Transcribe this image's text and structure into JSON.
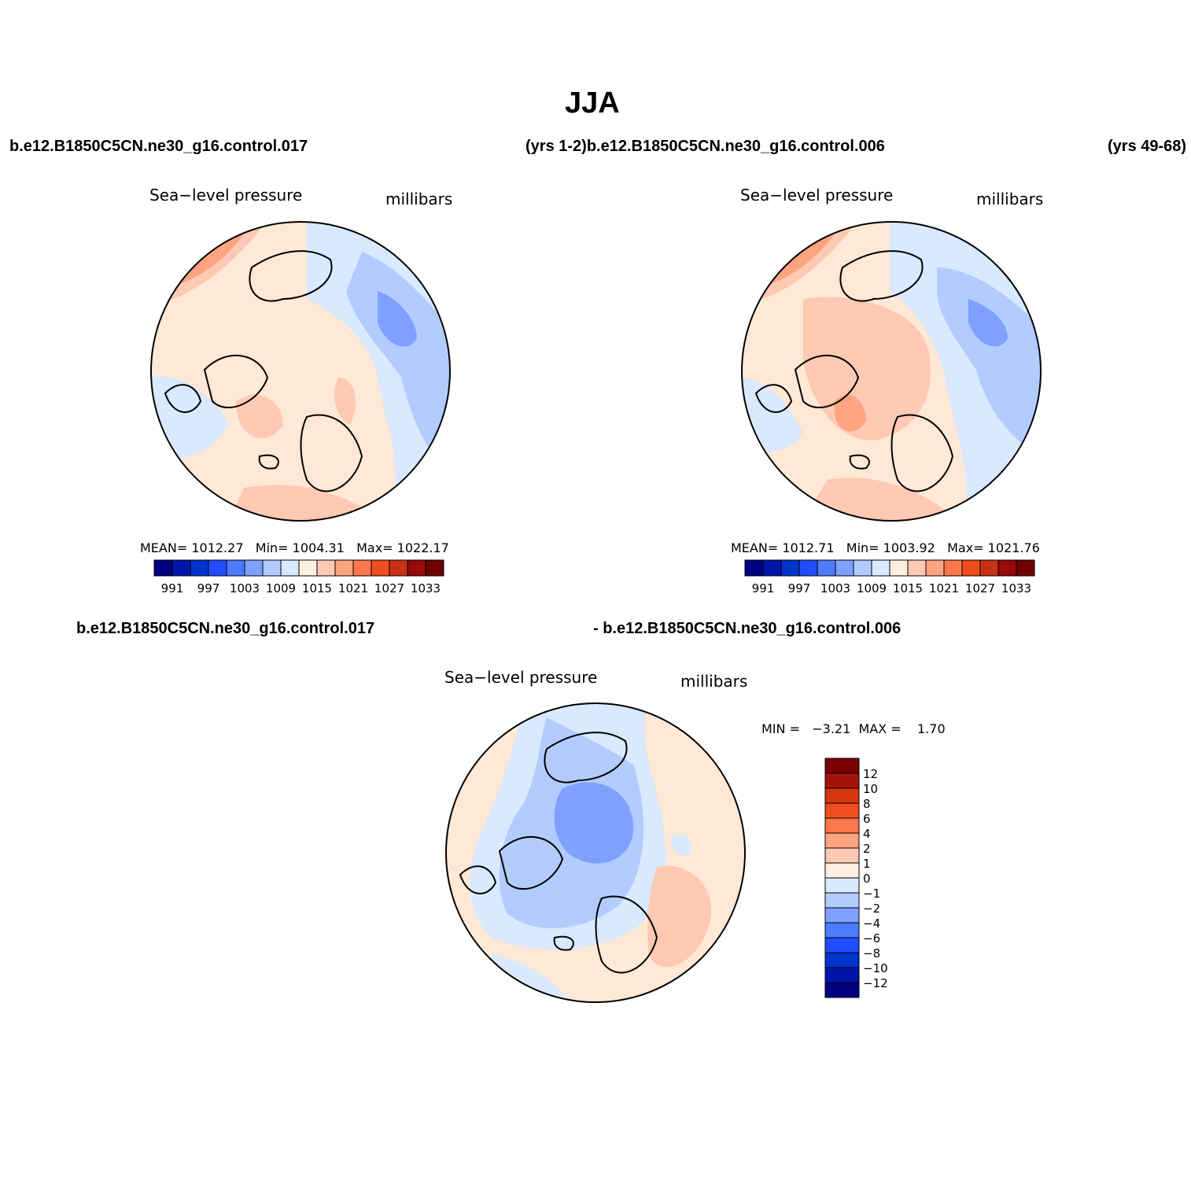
{
  "title": "JJA",
  "header": {
    "left_case": "b.e12.B1850C5CN.ne30_g16.control.017",
    "middle": "(yrs 1-2)b.e12.B1850C5CN.ne30_g16.control.006",
    "right": "(yrs 49-68)"
  },
  "diff_header": {
    "left": "b.e12.B1850C5CN.ne30_g16.control.017",
    "right": "- b.e12.B1850C5CN.ne30_g16.control.006"
  },
  "panels": [
    {
      "variable": "Sea−level pressure",
      "units": "millibars",
      "mean_label": "MEAN=",
      "mean": "1012.27",
      "min_label": "Min=",
      "min": "1004.31",
      "max_label": "Max=",
      "max": "1022.17"
    },
    {
      "variable": "Sea−level pressure",
      "units": "millibars",
      "mean_label": "MEAN=",
      "mean": "1012.71",
      "min_label": "Min=",
      "min": "1003.92",
      "max_label": "Max=",
      "max": "1021.76"
    }
  ],
  "diff_panel": {
    "variable": "Sea−level pressure",
    "units": "millibars",
    "min_label": "MIN =",
    "min": "−3.21",
    "max_label": "MAX =",
    "max": "1.70"
  },
  "colorbar_abs": {
    "colors": [
      "#000080",
      "#0015a8",
      "#0033cc",
      "#1f4dff",
      "#4d7dff",
      "#80a0ff",
      "#b3ccff",
      "#d9e9ff",
      "#ffefe0",
      "#ffc9b3",
      "#ffa380",
      "#ff774d",
      "#f04d1f",
      "#c83214",
      "#960a0a",
      "#6e0000"
    ],
    "labels": [
      "991",
      "997",
      "1003",
      "1009",
      "1015",
      "1021",
      "1027",
      "1033"
    ]
  },
  "colorbar_diff": {
    "colors": [
      "#000080",
      "#0015a8",
      "#0033cc",
      "#1f4dff",
      "#4d7dff",
      "#80a0ff",
      "#b3ccff",
      "#d9e9ff",
      "#ffefe0",
      "#ffc9b3",
      "#ffa380",
      "#ff774d",
      "#f04d1f",
      "#d6360f",
      "#a31408",
      "#7a0000"
    ],
    "labels": [
      "12",
      "10",
      "8",
      "6",
      "4",
      "2",
      "1",
      "0",
      "−1",
      "−2",
      "−4",
      "−6",
      "−8",
      "−10",
      "−12"
    ]
  }
}
